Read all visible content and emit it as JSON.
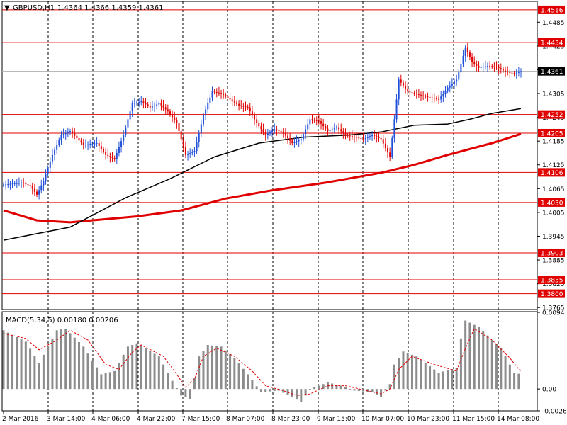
{
  "header": {
    "arrow": "▼",
    "symbol": "GBPUSD,H1",
    "ohlc": "1.4364 1.4366 1.4359 1.4361"
  },
  "macd_label": "MACD(5,34,5) 0.00180 0.00206",
  "colors": {
    "background": "#ffffff",
    "grid": "#000000",
    "level_line": "#e00000",
    "bull_candle": "#1f4fd8",
    "bear_candle": "#e00000",
    "ma_fast": "#000000",
    "ma_slow": "#e00000",
    "histogram": "#8c8c8c",
    "signal": "#e00000",
    "current_price_bg": "#000000"
  },
  "chart_data": [
    {
      "type": "candlestick",
      "title": "GBPUSD,H1",
      "symbol": "GBPUSD",
      "timeframe": "H1",
      "ylim": [
        1.376,
        1.454
      ],
      "y_ticks": [
        "1.4485",
        "1.4425",
        "1.4365",
        "1.4305",
        "1.4245",
        "1.4185",
        "1.4125",
        "1.4065",
        "1.4005",
        "1.3945",
        "1.3885",
        "1.3825",
        "1.3765"
      ],
      "x_tick_labels": [
        "2 Mar 2016",
        "3 Mar 14:00",
        "4 Mar 06:00",
        "4 Mar 22:00",
        "7 Mar 15:00",
        "8 Mar 07:00",
        "8 Mar 23:00",
        "9 Mar 15:00",
        "10 Mar 07:00",
        "10 Mar 23:00",
        "11 Mar 15:00",
        "14 Mar 08:00"
      ],
      "levels": [
        {
          "value": 1.4516,
          "label": "1.4516"
        },
        {
          "value": 1.4434,
          "label": "1.4434"
        },
        {
          "value": 1.4252,
          "label": "1.4252"
        },
        {
          "value": 1.4205,
          "label": "1.4205"
        },
        {
          "value": 1.4106,
          "label": "1.4106"
        },
        {
          "value": 1.403,
          "label": "1.4030"
        },
        {
          "value": 1.3903,
          "label": "1.3903"
        },
        {
          "value": 1.3835,
          "label": "1.3835"
        },
        {
          "value": 1.38,
          "label": "1.3800"
        }
      ],
      "current_price": {
        "value": 1.4361,
        "label": "1.4361"
      },
      "close_path": [
        [
          0,
          1.4075
        ],
        [
          8,
          1.408
        ],
        [
          12,
          1.4072
        ],
        [
          15,
          1.405
        ],
        [
          18,
          1.4085
        ],
        [
          22,
          1.415
        ],
        [
          26,
          1.42
        ],
        [
          30,
          1.421
        ],
        [
          36,
          1.4175
        ],
        [
          42,
          1.418
        ],
        [
          46,
          1.415
        ],
        [
          50,
          1.414
        ],
        [
          54,
          1.42
        ],
        [
          58,
          1.428
        ],
        [
          62,
          1.4285
        ],
        [
          66,
          1.427
        ],
        [
          70,
          1.428
        ],
        [
          74,
          1.426
        ],
        [
          78,
          1.423
        ],
        [
          82,
          1.415
        ],
        [
          86,
          1.416
        ],
        [
          90,
          1.425
        ],
        [
          94,
          1.431
        ],
        [
          98,
          1.4305
        ],
        [
          102,
          1.429
        ],
        [
          106,
          1.4275
        ],
        [
          110,
          1.427
        ],
        [
          114,
          1.423
        ],
        [
          118,
          1.42
        ],
        [
          122,
          1.4215
        ],
        [
          126,
          1.4205
        ],
        [
          130,
          1.418
        ],
        [
          134,
          1.419
        ],
        [
          138,
          1.424
        ],
        [
          142,
          1.4235
        ],
        [
          146,
          1.421
        ],
        [
          150,
          1.422
        ],
        [
          154,
          1.42
        ],
        [
          158,
          1.4195
        ],
        [
          162,
          1.419
        ],
        [
          166,
          1.42
        ],
        [
          170,
          1.419
        ],
        [
          174,
          1.4145
        ],
        [
          176,
          1.424
        ],
        [
          178,
          1.434
        ],
        [
          182,
          1.431
        ],
        [
          188,
          1.43
        ],
        [
          192,
          1.4295
        ],
        [
          196,
          1.429
        ],
        [
          200,
          1.432
        ],
        [
          204,
          1.434
        ],
        [
          206,
          1.438
        ],
        [
          208,
          1.442
        ],
        [
          211,
          1.4385
        ],
        [
          214,
          1.437
        ],
        [
          218,
          1.4375
        ],
        [
          222,
          1.4372
        ],
        [
          226,
          1.436
        ],
        [
          230,
          1.4355
        ],
        [
          233,
          1.4361
        ]
      ],
      "ma_fast": [
        [
          0,
          1.3935
        ],
        [
          30,
          1.3968
        ],
        [
          55,
          1.4042
        ],
        [
          75,
          1.409
        ],
        [
          95,
          1.4145
        ],
        [
          115,
          1.418
        ],
        [
          135,
          1.4195
        ],
        [
          155,
          1.42
        ],
        [
          170,
          1.4208
        ],
        [
          185,
          1.4225
        ],
        [
          200,
          1.4228
        ],
        [
          210,
          1.424
        ],
        [
          220,
          1.4255
        ],
        [
          233,
          1.4267
        ]
      ],
      "ma_slow": [
        [
          0,
          1.401
        ],
        [
          15,
          1.3985
        ],
        [
          30,
          1.398
        ],
        [
          60,
          1.3995
        ],
        [
          80,
          1.401
        ],
        [
          100,
          1.404
        ],
        [
          120,
          1.406
        ],
        [
          145,
          1.408
        ],
        [
          155,
          1.409
        ],
        [
          170,
          1.4105
        ],
        [
          185,
          1.4125
        ],
        [
          200,
          1.415
        ],
        [
          220,
          1.418
        ],
        [
          233,
          1.4203
        ]
      ]
    },
    {
      "type": "macd",
      "title": "MACD(5,34,5)",
      "params": [
        5,
        34,
        5
      ],
      "main_value": 0.0018,
      "signal_value": 0.00206,
      "ylim": [
        -0.00268,
        0.0094
      ],
      "y_ticks": [
        "0.0094",
        "0.00",
        "-0.00268"
      ],
      "histogram_path": [
        [
          0,
          0.0072
        ],
        [
          10,
          0.0058
        ],
        [
          16,
          0.0032
        ],
        [
          24,
          0.0072
        ],
        [
          28,
          0.0074
        ],
        [
          36,
          0.0052
        ],
        [
          44,
          0.0018
        ],
        [
          50,
          0.0022
        ],
        [
          56,
          0.0052
        ],
        [
          60,
          0.0056
        ],
        [
          70,
          0.004
        ],
        [
          76,
          0.001
        ],
        [
          80,
          -0.0008
        ],
        [
          84,
          -0.0012
        ],
        [
          88,
          0.004
        ],
        [
          92,
          0.0054
        ],
        [
          98,
          0.0052
        ],
        [
          104,
          0.0038
        ],
        [
          110,
          0.0018
        ],
        [
          116,
          -0.0004
        ],
        [
          124,
          -0.0002
        ],
        [
          130,
          -0.001
        ],
        [
          134,
          -0.0016
        ],
        [
          138,
          0.0
        ],
        [
          146,
          0.0008
        ],
        [
          152,
          0.0004
        ],
        [
          158,
          -0.0002
        ],
        [
          166,
          -0.0004
        ],
        [
          170,
          -0.001
        ],
        [
          174,
          0.0006
        ],
        [
          176,
          0.003
        ],
        [
          180,
          0.0046
        ],
        [
          186,
          0.004
        ],
        [
          196,
          0.002
        ],
        [
          204,
          0.0026
        ],
        [
          206,
          0.0062
        ],
        [
          208,
          0.0084
        ],
        [
          214,
          0.0076
        ],
        [
          224,
          0.005
        ],
        [
          230,
          0.002
        ],
        [
          233,
          0.0018
        ]
      ],
      "signal_path": [
        [
          0,
          0.0068
        ],
        [
          10,
          0.0062
        ],
        [
          16,
          0.0048
        ],
        [
          24,
          0.006
        ],
        [
          30,
          0.0072
        ],
        [
          38,
          0.006
        ],
        [
          46,
          0.003
        ],
        [
          52,
          0.0024
        ],
        [
          58,
          0.0045
        ],
        [
          62,
          0.0054
        ],
        [
          72,
          0.004
        ],
        [
          78,
          0.0018
        ],
        [
          82,
          0.0002
        ],
        [
          86,
          0.0012
        ],
        [
          90,
          0.004
        ],
        [
          96,
          0.005
        ],
        [
          104,
          0.004
        ],
        [
          112,
          0.0022
        ],
        [
          118,
          0.0004
        ],
        [
          126,
          -0.0002
        ],
        [
          132,
          -0.0008
        ],
        [
          138,
          -0.0006
        ],
        [
          146,
          0.0004
        ],
        [
          154,
          0.0004
        ],
        [
          162,
          -0.0001
        ],
        [
          170,
          -0.0006
        ],
        [
          174,
          0.0
        ],
        [
          178,
          0.0024
        ],
        [
          184,
          0.004
        ],
        [
          194,
          0.003
        ],
        [
          204,
          0.0022
        ],
        [
          208,
          0.005
        ],
        [
          212,
          0.0074
        ],
        [
          220,
          0.006
        ],
        [
          228,
          0.0038
        ],
        [
          233,
          0.0021
        ]
      ]
    }
  ]
}
